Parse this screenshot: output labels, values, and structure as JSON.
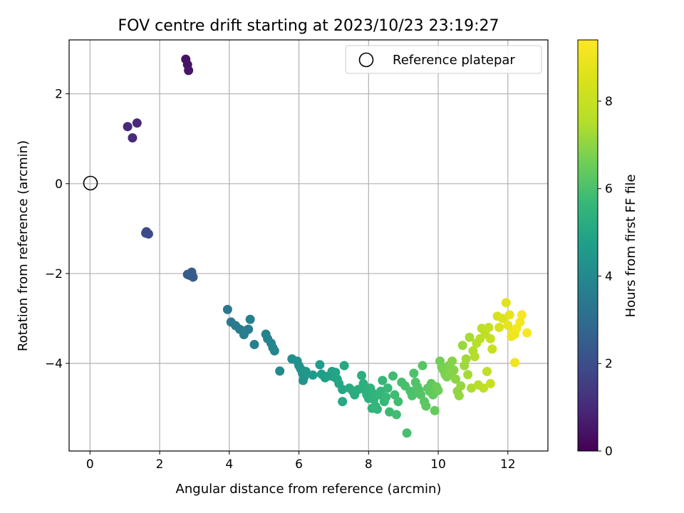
{
  "chart_data": {
    "type": "scatter",
    "title": "FOV centre drift starting at 2023/10/23 23:19:27",
    "xlabel": "Angular distance from reference (arcmin)",
    "ylabel": "Rotation from reference (arcmin)",
    "xlim": [
      -0.6,
      13.15
    ],
    "ylim": [
      -5.95,
      3.2
    ],
    "xticks": [
      0,
      2,
      4,
      6,
      8,
      10,
      12
    ],
    "xtick_labels": [
      "0",
      "2",
      "4",
      "6",
      "8",
      "10",
      "12"
    ],
    "yticks": [
      -4,
      -2,
      0,
      2
    ],
    "ytick_labels": [
      "−4",
      "−2",
      "0",
      "2"
    ],
    "grid": true,
    "legend": {
      "location": "top-right",
      "entries": [
        "Reference platepar"
      ]
    },
    "reference_point": {
      "x": 0,
      "y": 0
    },
    "colorbar": {
      "label": "Hours from first FF file",
      "colormap": "viridis",
      "range": [
        0,
        9.4
      ],
      "ticks": [
        0,
        2,
        4,
        6,
        8
      ],
      "tick_labels": [
        "0",
        "2",
        "4",
        "6",
        "8"
      ]
    },
    "points": [
      [
        2.75,
        2.77,
        0.4
      ],
      [
        2.8,
        2.65,
        0.45
      ],
      [
        2.83,
        2.52,
        0.5
      ],
      [
        1.08,
        1.27,
        1.0
      ],
      [
        1.35,
        1.35,
        1.0
      ],
      [
        1.22,
        1.02,
        1.05
      ],
      [
        1.62,
        -1.07,
        1.9
      ],
      [
        1.68,
        -1.12,
        1.95
      ],
      [
        1.6,
        -1.1,
        1.95
      ],
      [
        2.8,
        -2.02,
        2.4
      ],
      [
        2.92,
        -1.97,
        2.45
      ],
      [
        2.96,
        -2.08,
        2.5
      ],
      [
        2.86,
        -2.04,
        2.45
      ],
      [
        3.95,
        -2.8,
        3.4
      ],
      [
        4.05,
        -3.08,
        3.45
      ],
      [
        4.18,
        -3.16,
        3.5
      ],
      [
        4.3,
        -3.24,
        3.5
      ],
      [
        4.42,
        -3.36,
        3.6
      ],
      [
        4.5,
        -3.26,
        3.6
      ],
      [
        4.55,
        -3.24,
        3.6
      ],
      [
        4.6,
        -3.02,
        3.65
      ],
      [
        4.72,
        -3.58,
        3.7
      ],
      [
        5.05,
        -3.35,
        3.8
      ],
      [
        5.1,
        -3.45,
        3.8
      ],
      [
        5.2,
        -3.55,
        3.85
      ],
      [
        5.25,
        -3.65,
        3.9
      ],
      [
        5.3,
        -3.72,
        3.9
      ],
      [
        5.45,
        -4.17,
        4.0
      ],
      [
        5.8,
        -3.9,
        4.2
      ],
      [
        5.95,
        -3.95,
        4.25
      ],
      [
        6.0,
        -4.05,
        4.3
      ],
      [
        6.05,
        -4.12,
        4.3
      ],
      [
        6.1,
        -4.22,
        4.35
      ],
      [
        6.15,
        -4.3,
        4.4
      ],
      [
        6.12,
        -4.38,
        4.4
      ],
      [
        6.2,
        -4.18,
        4.45
      ],
      [
        6.4,
        -4.26,
        4.6
      ],
      [
        6.6,
        -4.03,
        4.7
      ],
      [
        6.65,
        -4.24,
        4.7
      ],
      [
        6.75,
        -4.32,
        4.75
      ],
      [
        6.85,
        -4.28,
        4.8
      ],
      [
        6.95,
        -4.18,
        4.85
      ],
      [
        7.0,
        -4.3,
        4.85
      ],
      [
        7.05,
        -4.2,
        4.9
      ],
      [
        7.1,
        -4.35,
        4.9
      ],
      [
        7.15,
        -4.45,
        5.0
      ],
      [
        7.25,
        -4.58,
        5.0
      ],
      [
        7.3,
        -4.05,
        5.05
      ],
      [
        7.25,
        -4.85,
        5.05
      ],
      [
        7.45,
        -4.55,
        5.15
      ],
      [
        7.55,
        -4.62,
        5.2
      ],
      [
        7.6,
        -4.7,
        5.2
      ],
      [
        7.7,
        -4.58,
        5.25
      ],
      [
        7.8,
        -4.27,
        5.3
      ],
      [
        7.85,
        -4.45,
        5.35
      ],
      [
        7.9,
        -4.6,
        5.35
      ],
      [
        7.95,
        -4.7,
        5.4
      ],
      [
        8.0,
        -4.78,
        5.4
      ],
      [
        8.05,
        -4.55,
        5.45
      ],
      [
        8.1,
        -4.65,
        5.45
      ],
      [
        8.15,
        -4.8,
        5.5
      ],
      [
        8.1,
        -5.0,
        5.5
      ],
      [
        8.2,
        -4.95,
        5.55
      ],
      [
        8.25,
        -5.02,
        5.55
      ],
      [
        8.3,
        -4.7,
        5.6
      ],
      [
        8.35,
        -4.62,
        5.6
      ],
      [
        8.4,
        -4.38,
        5.65
      ],
      [
        8.45,
        -4.85,
        5.65
      ],
      [
        8.5,
        -4.75,
        5.7
      ],
      [
        8.55,
        -4.55,
        5.7
      ],
      [
        8.6,
        -5.08,
        5.75
      ],
      [
        8.7,
        -4.28,
        5.8
      ],
      [
        8.75,
        -4.7,
        5.8
      ],
      [
        8.8,
        -5.14,
        5.85
      ],
      [
        8.85,
        -4.85,
        5.85
      ],
      [
        8.95,
        -4.42,
        5.9
      ],
      [
        9.05,
        -4.5,
        5.95
      ],
      [
        9.1,
        -5.55,
        5.95
      ],
      [
        9.2,
        -4.62,
        6.0
      ],
      [
        9.25,
        -4.72,
        6.05
      ],
      [
        9.3,
        -4.22,
        6.05
      ],
      [
        9.35,
        -4.42,
        6.1
      ],
      [
        9.4,
        -4.52,
        6.1
      ],
      [
        9.45,
        -4.6,
        6.15
      ],
      [
        9.5,
        -4.7,
        6.15
      ],
      [
        9.55,
        -4.05,
        6.2
      ],
      [
        9.6,
        -4.85,
        6.25
      ],
      [
        9.65,
        -4.95,
        6.3
      ],
      [
        9.7,
        -4.55,
        6.3
      ],
      [
        9.75,
        -4.62,
        6.35
      ],
      [
        9.8,
        -4.45,
        6.35
      ],
      [
        9.85,
        -4.7,
        6.4
      ],
      [
        9.9,
        -5.05,
        6.45
      ],
      [
        9.95,
        -4.52,
        6.5
      ],
      [
        10.0,
        -4.6,
        6.55
      ],
      [
        10.05,
        -3.95,
        6.6
      ],
      [
        10.1,
        -4.08,
        6.65
      ],
      [
        10.15,
        -4.15,
        6.7
      ],
      [
        10.2,
        -4.25,
        6.75
      ],
      [
        10.25,
        -4.3,
        6.75
      ],
      [
        10.3,
        -4.05,
        6.8
      ],
      [
        10.35,
        -4.25,
        6.85
      ],
      [
        10.4,
        -3.95,
        6.9
      ],
      [
        10.45,
        -4.15,
        6.9
      ],
      [
        10.5,
        -4.35,
        6.95
      ],
      [
        10.55,
        -4.62,
        7.0
      ],
      [
        10.6,
        -4.72,
        7.05
      ],
      [
        10.65,
        -4.5,
        7.1
      ],
      [
        10.7,
        -3.6,
        7.15
      ],
      [
        10.75,
        -4.05,
        7.2
      ],
      [
        10.8,
        -3.9,
        7.25
      ],
      [
        10.85,
        -4.25,
        7.3
      ],
      [
        10.9,
        -3.42,
        7.35
      ],
      [
        10.95,
        -4.55,
        7.4
      ],
      [
        11.0,
        -3.72,
        7.45
      ],
      [
        11.05,
        -3.85,
        7.5
      ],
      [
        11.1,
        -3.55,
        7.55
      ],
      [
        11.15,
        -4.48,
        7.6
      ],
      [
        11.2,
        -3.45,
        7.65
      ],
      [
        11.25,
        -3.22,
        7.7
      ],
      [
        11.3,
        -4.55,
        7.75
      ],
      [
        11.35,
        -3.35,
        7.8
      ],
      [
        11.4,
        -4.18,
        7.85
      ],
      [
        11.45,
        -3.2,
        7.9
      ],
      [
        11.5,
        -3.45,
        7.95
      ],
      [
        11.5,
        -4.45,
        8.0
      ],
      [
        11.55,
        -3.68,
        8.05
      ],
      [
        11.7,
        -2.95,
        8.35
      ],
      [
        11.75,
        -3.2,
        8.45
      ],
      [
        11.85,
        -3.0,
        8.55
      ],
      [
        11.95,
        -2.65,
        8.7
      ],
      [
        12.0,
        -3.15,
        8.8
      ],
      [
        12.05,
        -2.92,
        8.85
      ],
      [
        12.1,
        -3.4,
        8.95
      ],
      [
        12.15,
        -3.28,
        9.0
      ],
      [
        12.2,
        -3.35,
        9.05
      ],
      [
        12.2,
        -3.98,
        9.1
      ],
      [
        12.25,
        -3.22,
        9.15
      ],
      [
        12.35,
        -3.08,
        9.2
      ],
      [
        12.4,
        -2.92,
        9.25
      ],
      [
        12.55,
        -3.32,
        9.3
      ]
    ]
  }
}
